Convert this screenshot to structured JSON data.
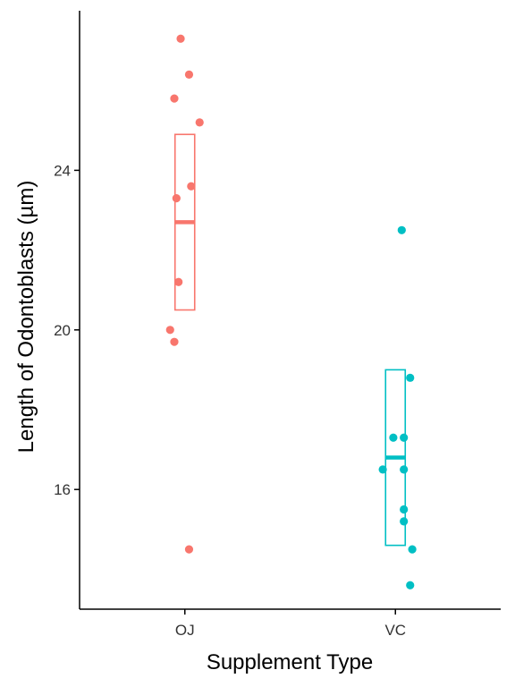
{
  "chart_data": {
    "type": "scatter",
    "xlabel": "Supplement Type",
    "ylabel": "Length of Odontoblasts (µm)",
    "categories": [
      "OJ",
      "VC"
    ],
    "ylim": [
      13.0,
      28.0
    ],
    "yticks": [
      16,
      20,
      24
    ],
    "grid": false,
    "legend": "none",
    "series": [
      {
        "category": "OJ",
        "color": "#F8766D",
        "points": [
          {
            "x": -0.02,
            "y": 27.3
          },
          {
            "x": 0.02,
            "y": 26.4
          },
          {
            "x": -0.05,
            "y": 25.8
          },
          {
            "x": 0.07,
            "y": 25.2
          },
          {
            "x": 0.03,
            "y": 23.6
          },
          {
            "x": -0.04,
            "y": 23.3
          },
          {
            "x": -0.03,
            "y": 21.2
          },
          {
            "x": -0.07,
            "y": 20.0
          },
          {
            "x": -0.05,
            "y": 19.7
          },
          {
            "x": 0.02,
            "y": 14.5
          }
        ],
        "box": {
          "lower": 20.5,
          "upper": 24.9,
          "center": 22.7
        }
      },
      {
        "category": "VC",
        "color": "#00BFC4",
        "points": [
          {
            "x": 0.03,
            "y": 22.5
          },
          {
            "x": 0.07,
            "y": 18.8
          },
          {
            "x": -0.01,
            "y": 17.3
          },
          {
            "x": 0.04,
            "y": 17.3
          },
          {
            "x": -0.06,
            "y": 16.5
          },
          {
            "x": 0.04,
            "y": 16.5
          },
          {
            "x": 0.04,
            "y": 15.5
          },
          {
            "x": 0.04,
            "y": 15.2
          },
          {
            "x": 0.08,
            "y": 14.5
          },
          {
            "x": 0.07,
            "y": 13.6
          }
        ],
        "box": {
          "lower": 14.6,
          "upper": 19.0,
          "center": 16.8
        }
      }
    ]
  }
}
